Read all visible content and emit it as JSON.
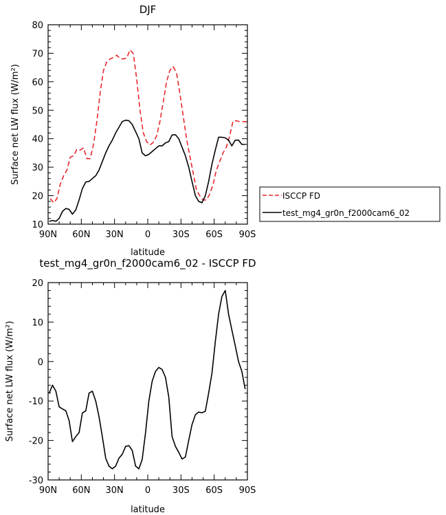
{
  "chart_data": [
    {
      "type": "line",
      "title": "DJF",
      "xlabel": "latitude",
      "ylabel": "Surface net LW flux (W/m²)",
      "xlim": [
        90,
        -90
      ],
      "ylim": [
        10,
        80
      ],
      "x_ticks": [
        {
          "value": 90,
          "label": "90N"
        },
        {
          "value": 60,
          "label": "60N"
        },
        {
          "value": 30,
          "label": "30N"
        },
        {
          "value": 0,
          "label": "0"
        },
        {
          "value": -30,
          "label": "30S"
        },
        {
          "value": -60,
          "label": "60S"
        },
        {
          "value": -90,
          "label": "90S"
        }
      ],
      "y_ticks": [
        10,
        20,
        30,
        40,
        50,
        60,
        70,
        80
      ],
      "legend": "right",
      "series": [
        {
          "name": "ISCCP FD",
          "color": "#e8262c",
          "dash": "dashed",
          "x": [
            88,
            85,
            82,
            79,
            76,
            73,
            70,
            67,
            64,
            61,
            58,
            55,
            52,
            49,
            46,
            43,
            40,
            37,
            34,
            31,
            28,
            25,
            22,
            19,
            16,
            13,
            10,
            7,
            4,
            1,
            -2,
            -5,
            -8,
            -11,
            -14,
            -17,
            -20,
            -23,
            -26,
            -29,
            -32,
            -35,
            -38,
            -41,
            -44,
            -47,
            -50,
            -53,
            -56,
            -59,
            -62,
            -65,
            -68,
            -71,
            -74,
            -77,
            -80,
            -83,
            -86,
            -89
          ],
          "y": [
            19,
            17.5,
            19,
            24,
            27,
            29,
            33.5,
            34,
            36.3,
            36,
            36.8,
            33,
            33,
            38,
            46,
            56,
            64,
            67,
            68,
            68.5,
            69.3,
            68.1,
            68,
            68.3,
            71.2,
            69.8,
            61,
            50,
            42,
            39,
            37.8,
            38.7,
            41,
            46,
            53,
            60,
            64,
            65.3,
            63,
            56,
            48,
            40,
            34,
            28,
            22,
            20,
            18.5,
            18.5,
            20.5,
            24,
            29,
            32,
            35,
            37,
            41,
            46.2,
            46.3,
            46,
            46,
            46
          ]
        },
        {
          "name": "test_mg4_gr0n_f2000cam6_02",
          "color": "#000000",
          "dash": "solid",
          "x": [
            89,
            86,
            83,
            80,
            77,
            74,
            71,
            68,
            65,
            62,
            59,
            56,
            53,
            50,
            47,
            44,
            41,
            38,
            35,
            32,
            29,
            26,
            23,
            20,
            17,
            14,
            11,
            8,
            5,
            2,
            -1,
            -4,
            -7,
            -10,
            -13,
            -16,
            -19,
            -22,
            -25,
            -28,
            -31,
            -34,
            -37,
            -40,
            -43,
            -46,
            -49,
            -52,
            -55,
            -58,
            -61,
            -64,
            -67,
            -70,
            -73,
            -76,
            -79,
            -82,
            -85,
            -88
          ],
          "y": [
            11,
            11.3,
            11,
            12,
            14.5,
            15.5,
            15.2,
            13.5,
            15,
            18.5,
            22.5,
            24.8,
            25,
            26,
            27,
            29,
            32,
            35,
            37.5,
            39.5,
            42,
            44,
            46,
            46.5,
            46.3,
            45,
            42.5,
            40,
            35,
            34,
            34.5,
            35.5,
            36.5,
            37.5,
            37.5,
            38.5,
            39,
            41.3,
            41.4,
            40,
            37,
            34,
            30,
            25,
            20,
            18,
            17.5,
            20,
            25,
            31,
            36,
            40.5,
            40.5,
            40.3,
            39.5,
            37.5,
            39.5,
            39.5,
            38,
            38
          ]
        }
      ]
    },
    {
      "type": "line",
      "title": "test_mg4_gr0n_f2000cam6_02 - ISCCP FD",
      "xlabel": "latitude",
      "ylabel": "Surface net LW flux (W/m²)",
      "xlim": [
        90,
        -90
      ],
      "ylim": [
        -30,
        20
      ],
      "x_ticks": [
        {
          "value": 90,
          "label": "90N"
        },
        {
          "value": 60,
          "label": "60N"
        },
        {
          "value": 30,
          "label": "30N"
        },
        {
          "value": 0,
          "label": "0"
        },
        {
          "value": -30,
          "label": "30S"
        },
        {
          "value": -60,
          "label": "60S"
        },
        {
          "value": -90,
          "label": "90S"
        }
      ],
      "y_ticks": [
        -30,
        -20,
        -10,
        0,
        10,
        20
      ],
      "series": [
        {
          "color": "#000000",
          "dash": "solid",
          "x": [
            89,
            86,
            83,
            80,
            77,
            74,
            71,
            68,
            65,
            62,
            59,
            56,
            53,
            50,
            47,
            44,
            41,
            38,
            35,
            32,
            29,
            26,
            23,
            20,
            17,
            14,
            11,
            8,
            5,
            2,
            -1,
            -4,
            -7,
            -10,
            -13,
            -16,
            -19,
            -22,
            -25,
            -28,
            -31,
            -34,
            -37,
            -40,
            -43,
            -46,
            -49,
            -52,
            -55,
            -58,
            -61,
            -64,
            -67,
            -70,
            -73,
            -76,
            -79,
            -82,
            -85,
            -88
          ],
          "y": [
            -8,
            -6,
            -7.5,
            -11.5,
            -12,
            -12.5,
            -15,
            -20.3,
            -19,
            -18,
            -13,
            -12.5,
            -8,
            -7.5,
            -10,
            -14,
            -19,
            -24.5,
            -26.5,
            -27.2,
            -26.5,
            -24.5,
            -23.5,
            -21.5,
            -21.3,
            -22.5,
            -26.5,
            -27.2,
            -24.8,
            -18,
            -10,
            -5,
            -2.5,
            -1.5,
            -2,
            -4,
            -9,
            -19,
            -21.5,
            -23,
            -24.7,
            -24.2,
            -20,
            -16,
            -13.5,
            -12.8,
            -13,
            -12.6,
            -8,
            -3,
            5,
            12,
            16.5,
            18,
            12,
            8,
            4,
            0,
            -2.5,
            -7
          ]
        }
      ]
    }
  ],
  "legend_entries": [
    {
      "name": "ISCCP FD"
    },
    {
      "name": "test_mg4_gr0n_f2000cam6_02"
    }
  ]
}
